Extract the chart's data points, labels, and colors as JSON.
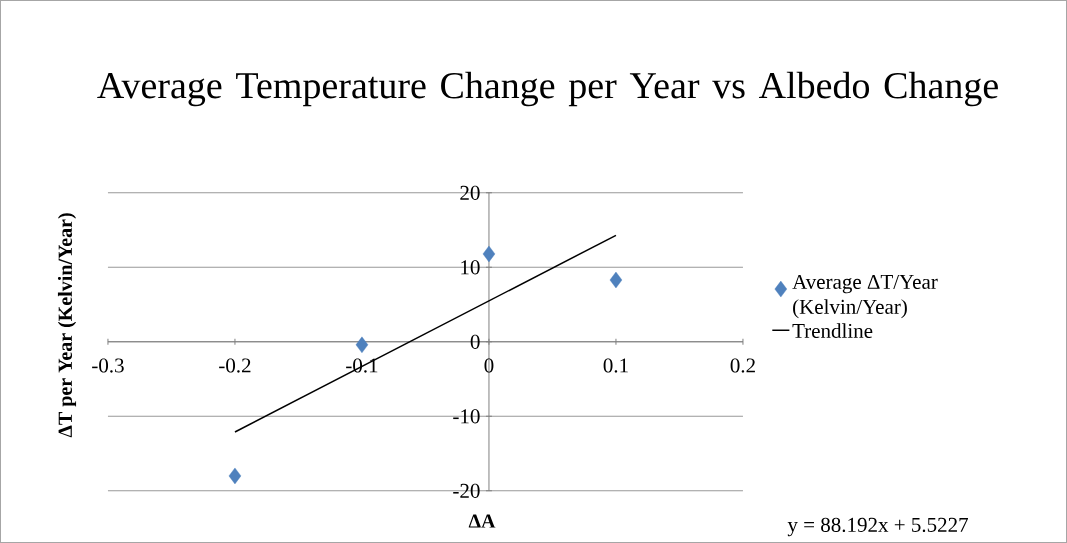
{
  "chart_data": {
    "type": "scatter",
    "title": "Average Temperature Change per Year vs Albedo Change",
    "xlabel": "ΔA",
    "ylabel": "ΔT per Year (Kelvin/Year)",
    "series": [
      {
        "name": "Average ΔT/Year (Kelvin/Year)",
        "color": "#4f81bd",
        "marker": "diamond",
        "x": [
          -0.2,
          -0.1,
          0,
          0.1
        ],
        "values": [
          -18.0,
          -0.4,
          11.8,
          8.3
        ]
      },
      {
        "name": "Trendline",
        "type": "line",
        "color": "#000000",
        "marker": "none",
        "line_style": "solid",
        "x": [
          -0.2,
          0.1
        ],
        "values": [
          -12.1,
          14.3
        ]
      }
    ],
    "xlim": [
      -0.3,
      0.2
    ],
    "xticks": [
      -0.3,
      -0.2,
      -0.1,
      0,
      0.1,
      0.2
    ],
    "ylim": [
      -20,
      20
    ],
    "yticks": [
      -20,
      -10,
      0,
      10,
      20
    ],
    "grid": "y",
    "legend": "right",
    "annotations": [
      "y = 88.192x + 5.5227"
    ]
  }
}
